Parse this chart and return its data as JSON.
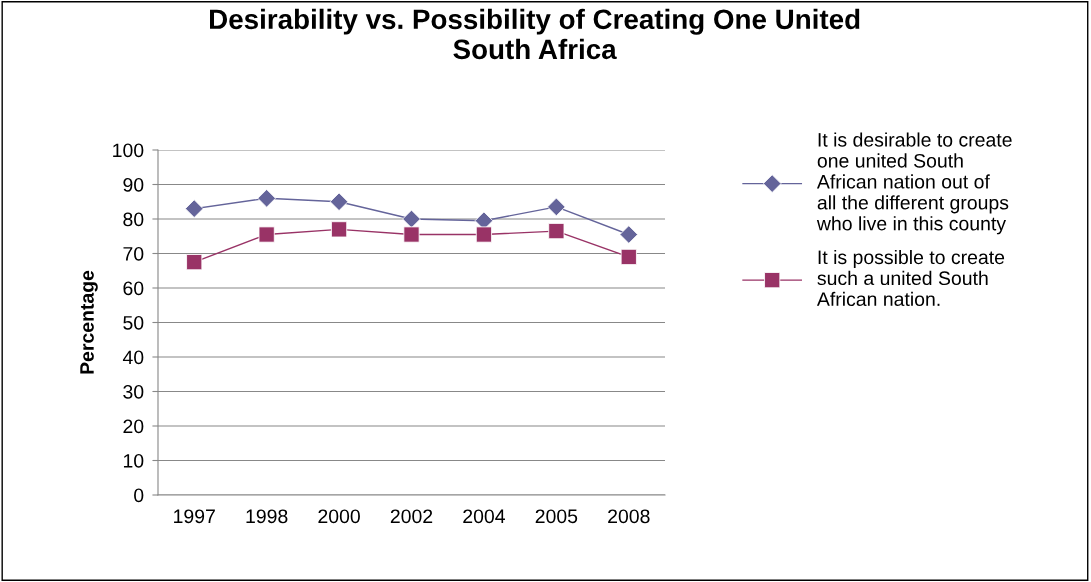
{
  "chart_data": {
    "type": "line",
    "title": "Desirability vs. Possibility of Creating One United\nSouth Africa",
    "ylabel": "Percentage",
    "categories": [
      "1997",
      "1998",
      "2000",
      "2002",
      "2004",
      "2005",
      "2008"
    ],
    "series": [
      {
        "name": "It is desirable to create\none united South\nAfrican nation out of\nall the different groups\nwho live in this county",
        "color": "#64649a",
        "marker": "diamond",
        "values": [
          83,
          86,
          85,
          80,
          79.5,
          83.5,
          75.5
        ]
      },
      {
        "name": "It is possible to create\nsuch a united South\nAfrican nation.",
        "color": "#993366",
        "marker": "square",
        "values": [
          67.5,
          75.5,
          77,
          75.5,
          75.5,
          76.5,
          69
        ]
      }
    ],
    "ylim": [
      0,
      100
    ],
    "yticks": [
      0,
      10,
      20,
      30,
      40,
      50,
      60,
      70,
      80,
      90,
      100
    ],
    "grid": "y",
    "legend": "right",
    "line_style": "solid"
  }
}
